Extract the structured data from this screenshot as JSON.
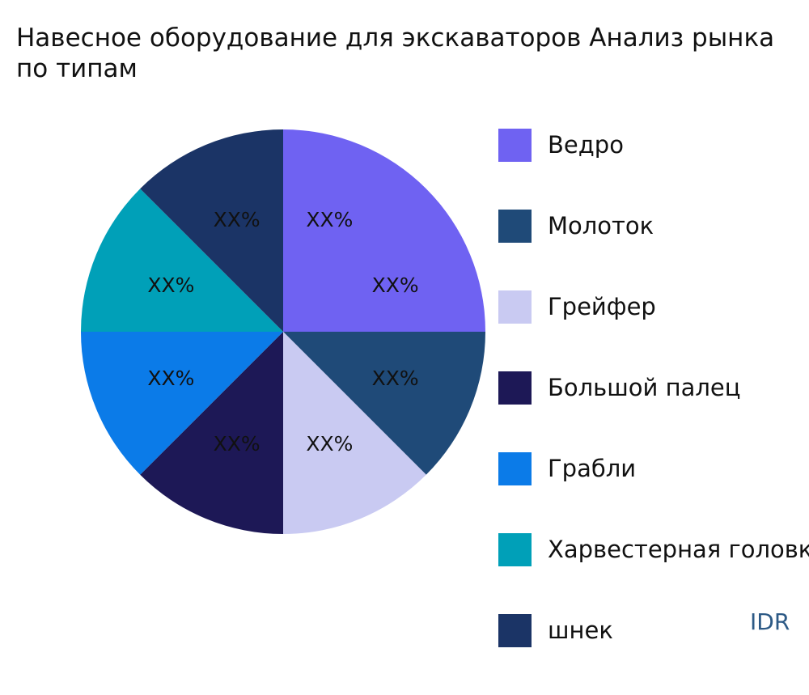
{
  "title_lines": [
    "Навесное оборудование для экскаваторов Анализ рынка",
    "по типам"
  ],
  "brand": "IDR",
  "chart_data": {
    "type": "pie",
    "start_angle_deg": 0,
    "direction": "clockwise",
    "slices": [
      {
        "name": "Ведро",
        "value": 25,
        "label": "XX%",
        "color": "#6f62f2"
      },
      {
        "name": "Молоток",
        "value": 12.5,
        "label": "XX%",
        "color": "#1f4a78"
      },
      {
        "name": "Грейфер",
        "value": 12.5,
        "label": "XX%",
        "color": "#c9caf2"
      },
      {
        "name": "Большой палец",
        "value": 12.5,
        "label": "XX%",
        "color": "#1d1856"
      },
      {
        "name": "Грабли",
        "value": 12.5,
        "label": "XX%",
        "color": "#0b7be8"
      },
      {
        "name": "Харвестерная головка",
        "value": 12.5,
        "label": "XX%",
        "color": "#00a0b8"
      },
      {
        "name": "шнек",
        "value": 12.5,
        "label": "XX%",
        "color": "#1b3466"
      }
    ],
    "legend_position": "right"
  }
}
